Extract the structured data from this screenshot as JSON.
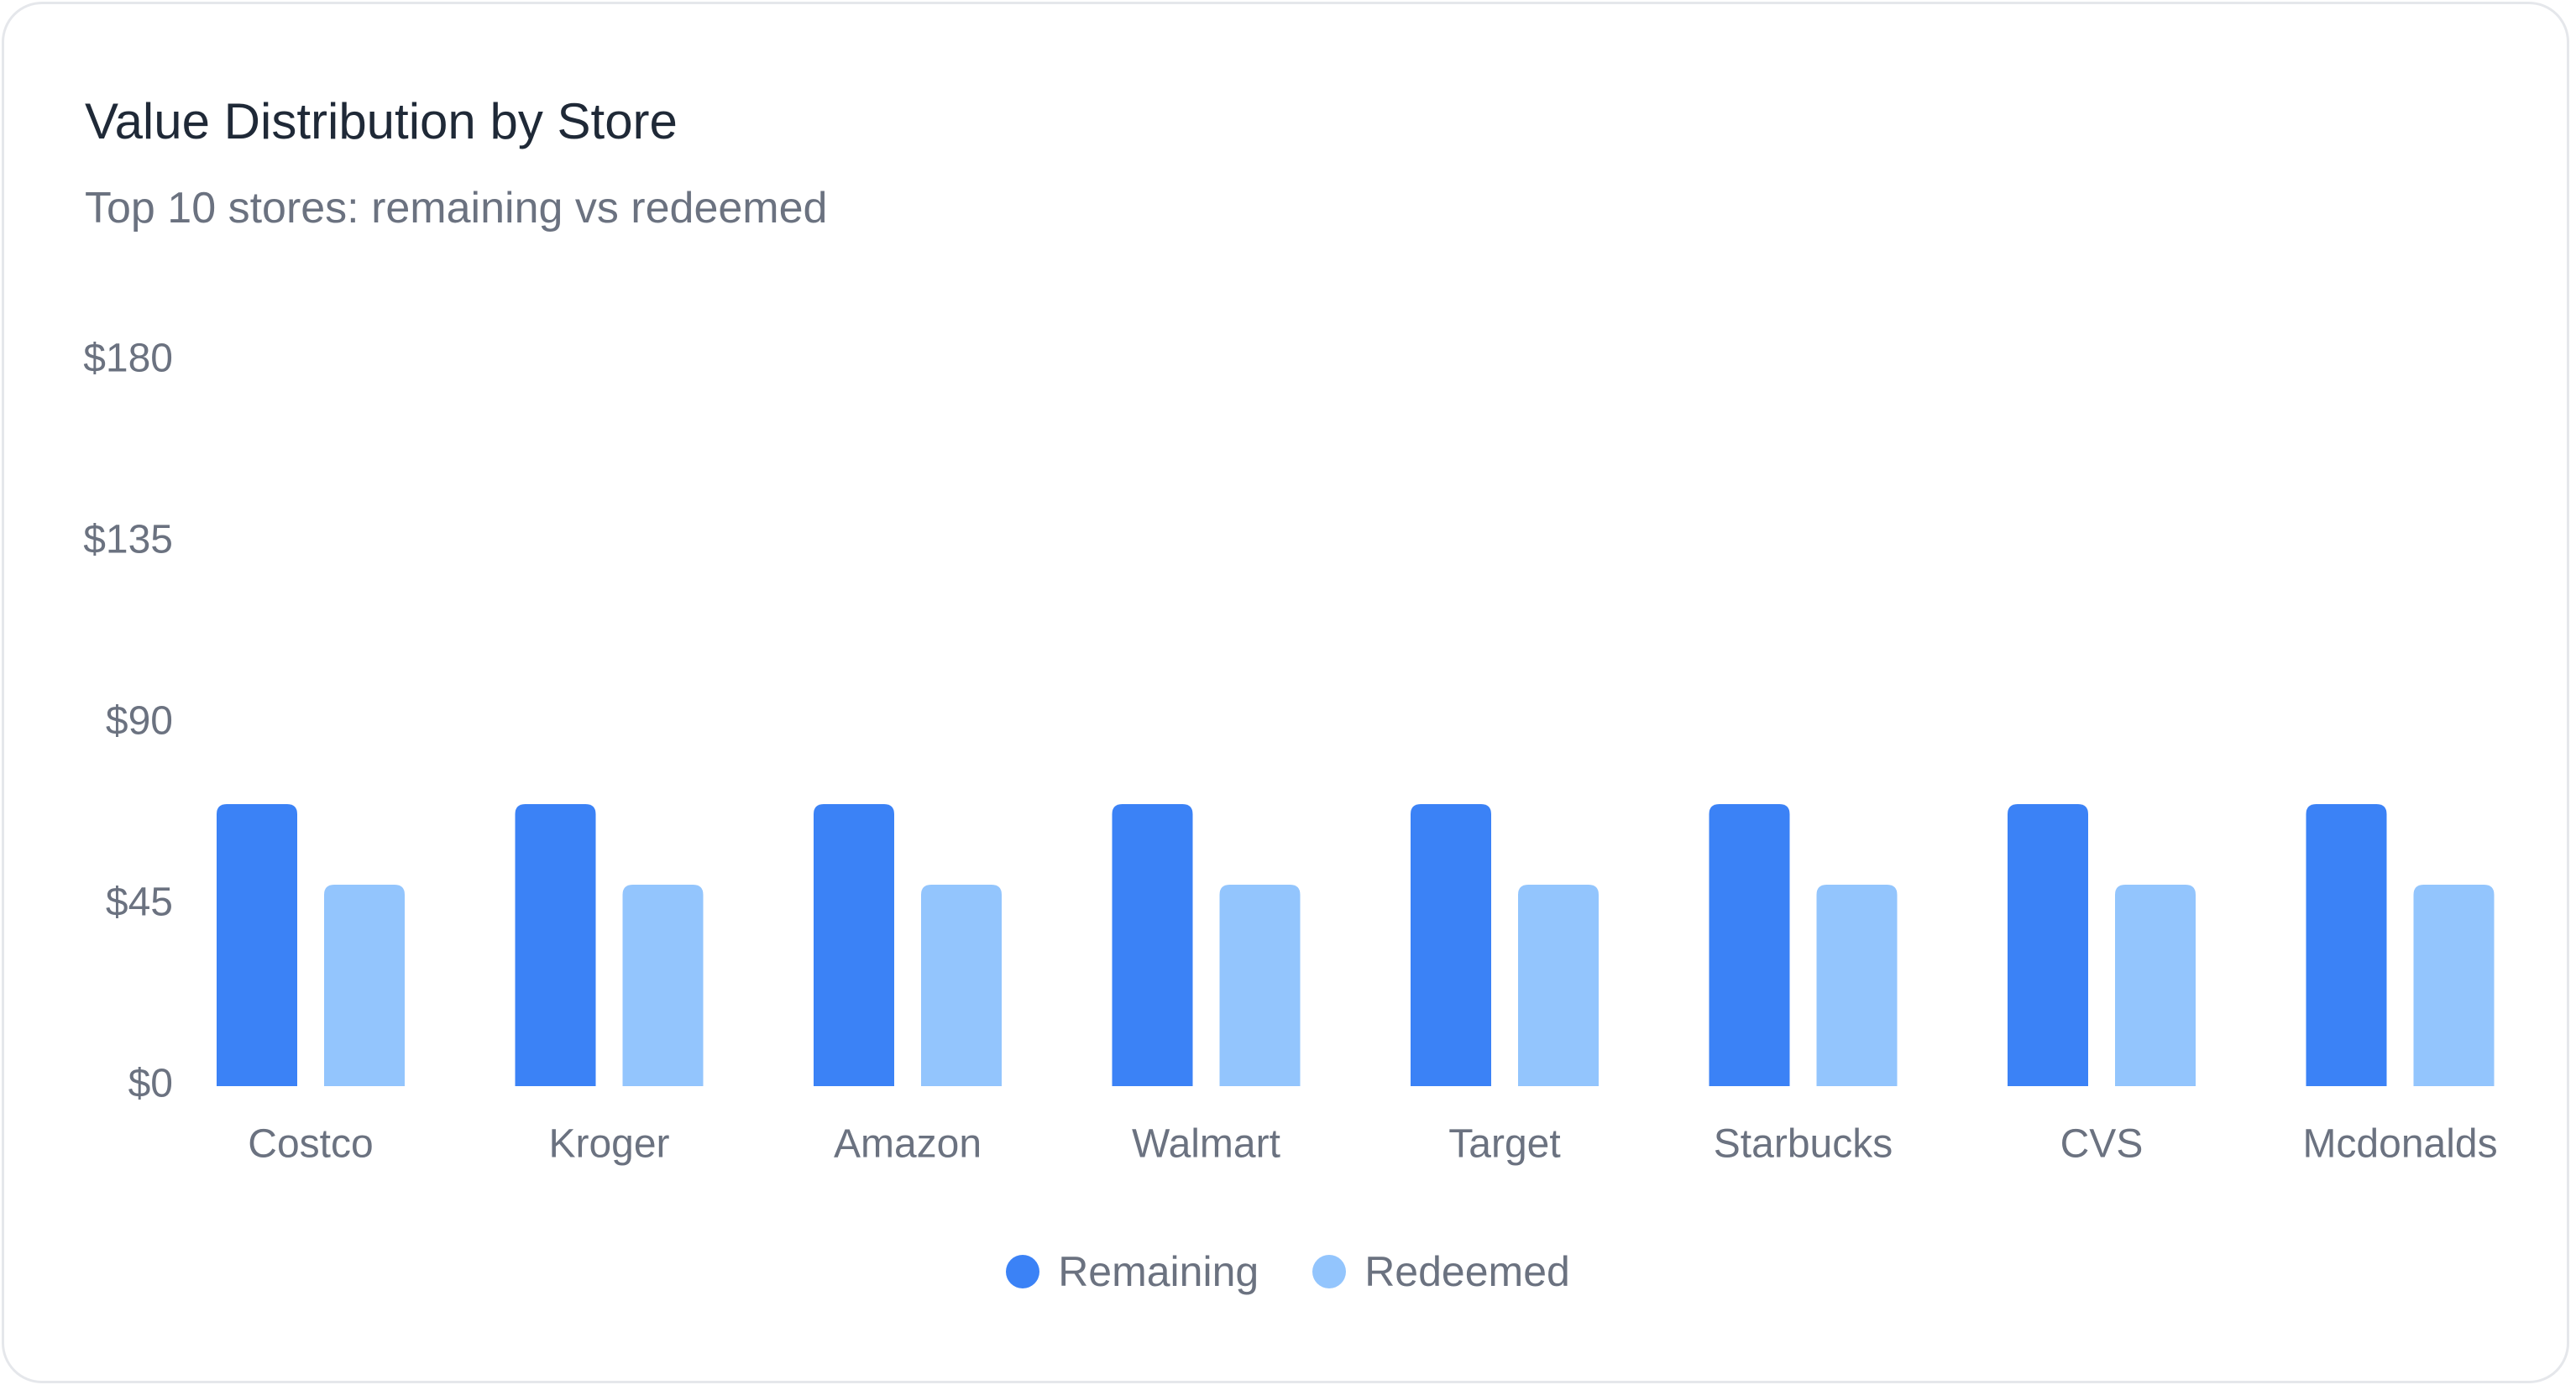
{
  "card": {
    "title": "Value Distribution by Store",
    "subtitle": "Top 10 stores: remaining vs redeemed"
  },
  "colors": {
    "remaining": "#3b82f6",
    "redeemed": "#93c5fd",
    "axis_text": "#6b7280",
    "title_text": "#1f2937",
    "border": "#e5e7eb"
  },
  "chart_data": {
    "type": "bar",
    "title": "Value Distribution by Store",
    "subtitle": "Top 10 stores: remaining vs redeemed",
    "categories": [
      "Costco",
      "Kroger",
      "Amazon",
      "Walmart",
      "Target",
      "Starbucks",
      "CVS",
      "Mcdonalds"
    ],
    "series": [
      {
        "name": "Remaining",
        "values": [
          70,
          70,
          70,
          70,
          70,
          70,
          70,
          70
        ]
      },
      {
        "name": "Redeemed",
        "values": [
          50,
          50,
          50,
          50,
          50,
          50,
          50,
          50
        ]
      }
    ],
    "yticks": [
      0,
      45,
      90,
      135,
      180
    ],
    "ytick_labels": [
      "$0",
      "$45",
      "$90",
      "$135",
      "$180"
    ],
    "ylim": [
      0,
      180
    ],
    "xlabel": "",
    "ylabel": "",
    "grid": false,
    "legend_position": "bottom"
  }
}
